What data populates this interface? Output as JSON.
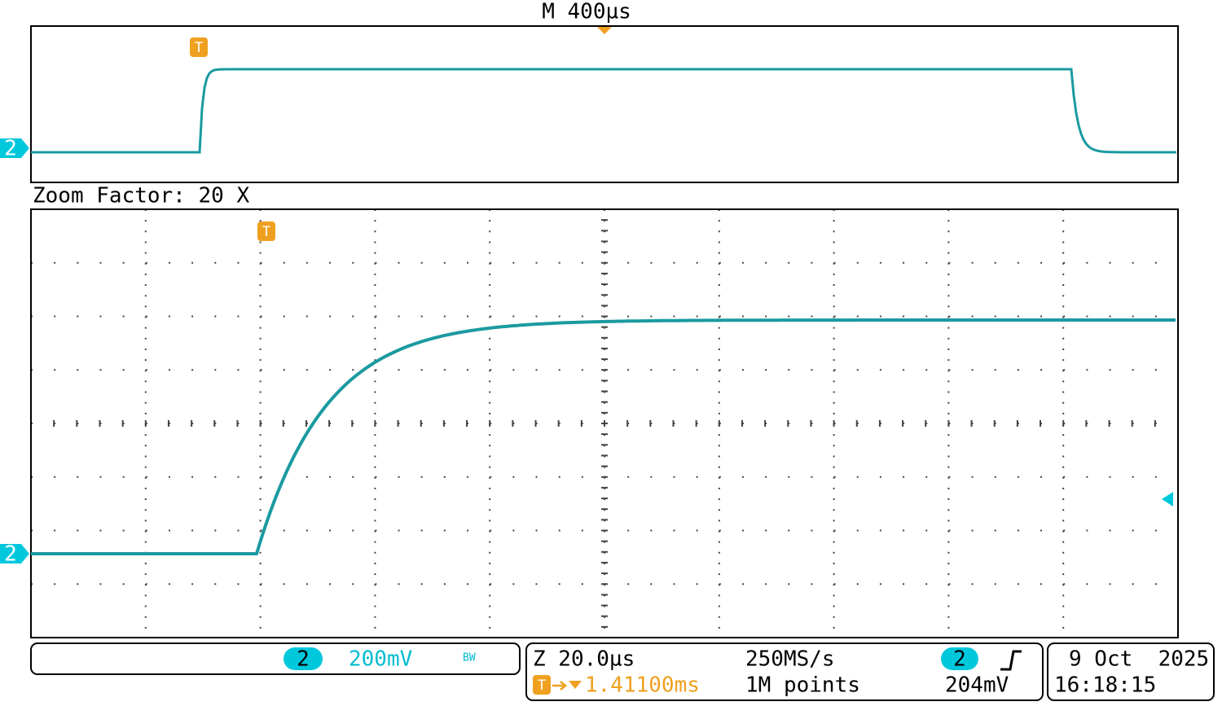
{
  "header": {
    "timebase": "M 400µs",
    "zoom_factor": "Zoom Factor: 20 X"
  },
  "markers": {
    "trigger": "T",
    "channel": "2"
  },
  "channel_box": {
    "channel": "2",
    "scale": "200mV",
    "bandwidth": "BW"
  },
  "acquisition": {
    "zoom_scale": "Z 20.0µs",
    "sample_rate": "250MS/s",
    "trigger_position": "1.41100ms",
    "record_length": "1M points",
    "trigger_channel": "2",
    "trigger_level": "204mV"
  },
  "datetime": {
    "date": "9 Oct  2025",
    "time": "16:18:15"
  }
}
